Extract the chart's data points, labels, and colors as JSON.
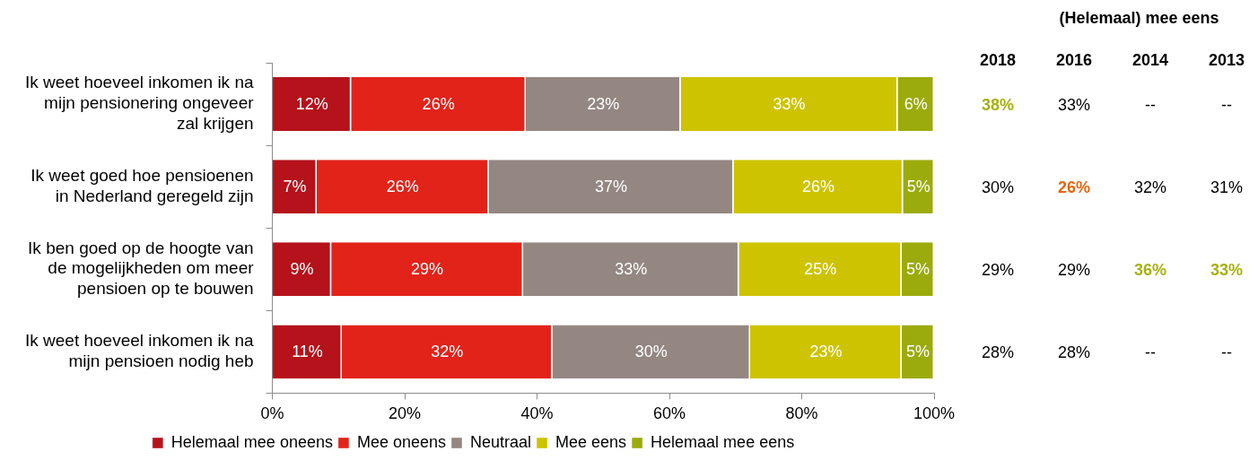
{
  "chart_data": [
    {
      "type": "bar",
      "orientation": "horizontal",
      "stacked": true,
      "legend": "bottom",
      "categories": [
        "Ik weet hoeveel inkomen ik na mijn pensionering ongeveer zal krijgen",
        "Ik weet goed hoe pensioenen in Nederland geregeld zijn",
        "Ik ben goed op de hoogte van de mogelijkheden om meer pensioen op te bouwen",
        "Ik weet hoeveel inkomen ik na mijn pensioen nodig heb"
      ],
      "xlim": [
        0,
        100
      ],
      "xticks": [
        {
          "value": 0,
          "label": "0%"
        },
        {
          "value": 20,
          "label": "20%"
        },
        {
          "value": 40,
          "label": "40%"
        },
        {
          "value": 60,
          "label": "60%"
        },
        {
          "value": 80,
          "label": "80%"
        },
        {
          "value": 100,
          "label": "100%"
        }
      ],
      "series": [
        {
          "name": "Helemaal mee oneens",
          "color": "#b5121b",
          "values": [
            11.9,
            6.7,
            8.9,
            10.5
          ],
          "value_labels": [
            "12%",
            "7%",
            "9%",
            "11%"
          ]
        },
        {
          "name": "Mee oneens",
          "color": "#e2231a",
          "values": [
            26.4,
            26.0,
            29.0,
            31.8
          ],
          "value_labels": [
            "26%",
            "26%",
            "29%",
            "32%"
          ]
        },
        {
          "name": "Neutraal",
          "color": "#948782",
          "values": [
            23.4,
            37.0,
            32.6,
            29.9
          ],
          "value_labels": [
            "23%",
            "37%",
            "33%",
            "30%"
          ]
        },
        {
          "name": "Mee eens",
          "color": "#cdc300",
          "values": [
            32.8,
            25.6,
            24.6,
            22.9
          ],
          "value_labels": [
            "33%",
            "26%",
            "25%",
            "23%"
          ]
        },
        {
          "name": "Helemaal mee eens",
          "color": "#9bab0c",
          "values": [
            5.5,
            4.7,
            4.9,
            4.9
          ],
          "value_labels": [
            "6%",
            "5%",
            "5%",
            "5%"
          ]
        }
      ]
    },
    {
      "type": "other",
      "title": "(Helemaal) mee eens",
      "categories": [
        "2018",
        "2016",
        "2014",
        "2013"
      ],
      "cell_labels": [
        [
          "38%",
          "33%",
          "--",
          "--"
        ],
        [
          "30%",
          "26%",
          "32%",
          "31%"
        ],
        [
          "29%",
          "29%",
          "36%",
          "33%"
        ],
        [
          "28%",
          "28%",
          "--",
          "--"
        ]
      ],
      "colors": [
        [
          "#a6b10f",
          null,
          null,
          null
        ],
        [
          null,
          "#e8650f",
          null,
          null
        ],
        [
          null,
          null,
          "#a6b10f",
          "#a6b10f"
        ],
        [
          null,
          null,
          null,
          null
        ]
      ]
    }
  ]
}
